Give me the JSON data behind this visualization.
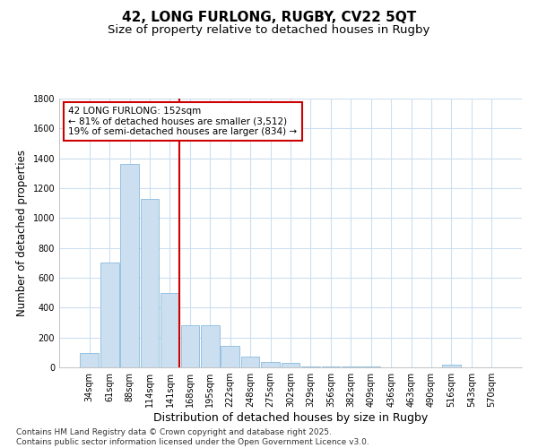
{
  "title": "42, LONG FURLONG, RUGBY, CV22 5QT",
  "subtitle": "Size of property relative to detached houses in Rugby",
  "xlabel": "Distribution of detached houses by size in Rugby",
  "ylabel": "Number of detached properties",
  "categories": [
    "34sqm",
    "61sqm",
    "88sqm",
    "114sqm",
    "141sqm",
    "168sqm",
    "195sqm",
    "222sqm",
    "248sqm",
    "275sqm",
    "302sqm",
    "329sqm",
    "356sqm",
    "382sqm",
    "409sqm",
    "436sqm",
    "463sqm",
    "490sqm",
    "516sqm",
    "543sqm",
    "570sqm"
  ],
  "values": [
    95,
    705,
    1365,
    1130,
    500,
    285,
    285,
    145,
    70,
    35,
    28,
    5,
    5,
    5,
    5,
    0,
    0,
    0,
    20,
    0,
    0
  ],
  "bar_color": "#ccdff0",
  "bar_edge_color": "#88bbdd",
  "vline_x_idx": 4,
  "vline_color": "#cc0000",
  "annotation_line1": "42 LONG FURLONG: 152sqm",
  "annotation_line2": "← 81% of detached houses are smaller (3,512)",
  "annotation_line3": "19% of semi-detached houses are larger (834) →",
  "annotation_box_color": "#ffffff",
  "annotation_box_edge": "#cc0000",
  "ylim": [
    0,
    1800
  ],
  "yticks": [
    0,
    200,
    400,
    600,
    800,
    1000,
    1200,
    1400,
    1600,
    1800
  ],
  "bg_color": "#ffffff",
  "plot_bg_color": "#ffffff",
  "grid_color": "#ccdff0",
  "footer_line1": "Contains HM Land Registry data © Crown copyright and database right 2025.",
  "footer_line2": "Contains public sector information licensed under the Open Government Licence v3.0.",
  "title_fontsize": 11,
  "subtitle_fontsize": 9.5,
  "tick_fontsize": 7,
  "xlabel_fontsize": 9,
  "ylabel_fontsize": 8.5,
  "footer_fontsize": 6.5
}
